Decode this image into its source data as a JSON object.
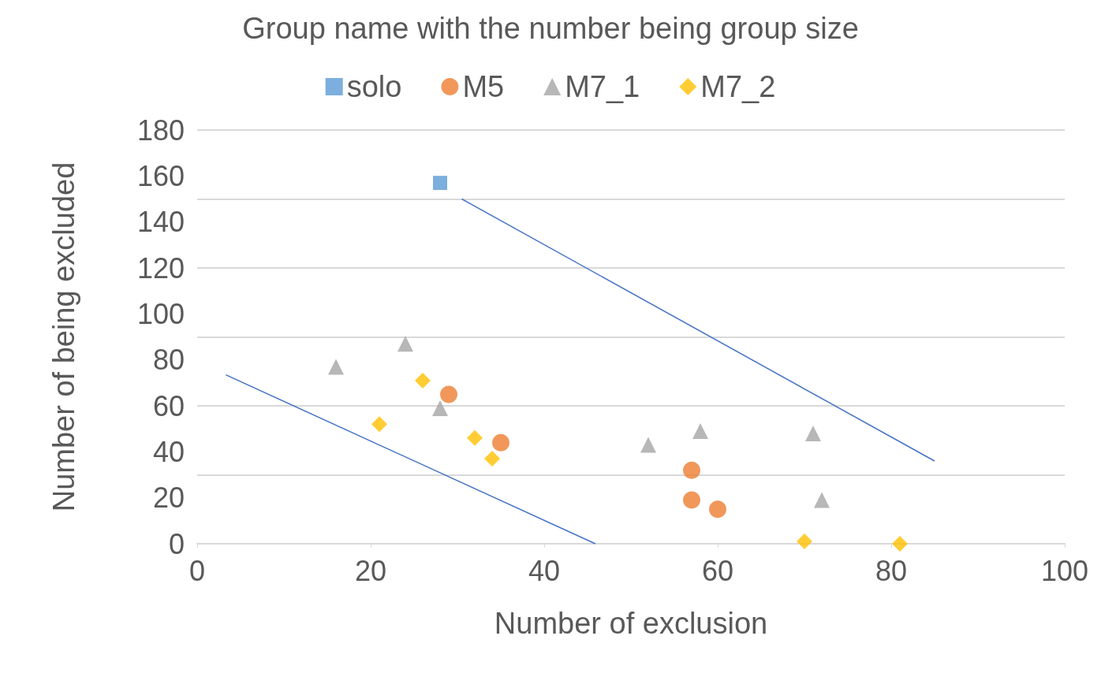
{
  "chart_data": {
    "type": "scatter",
    "title": "Group name with the number being group size",
    "xlabel": "Number of exclusion",
    "ylabel": "Number of being excluded",
    "xlim": [
      0,
      100
    ],
    "xticks": [
      0,
      20,
      40,
      60,
      80,
      100
    ],
    "ylim": [
      0,
      180
    ],
    "yticks": [
      0,
      20,
      40,
      60,
      80,
      100,
      120,
      140,
      160,
      180
    ],
    "grid": "y",
    "legend": "top",
    "series": [
      {
        "name": "solo",
        "color": "#5b9bd5",
        "marker": "square",
        "x": [
          28
        ],
        "values": [
          157
        ]
      },
      {
        "name": "M5",
        "color": "#ed7d31",
        "marker": "circle",
        "x": [
          29,
          35,
          57,
          57,
          60
        ],
        "values": [
          65,
          44,
          32,
          19,
          15
        ]
      },
      {
        "name": "M7_1",
        "color": "#a5a5a5",
        "marker": "triangle",
        "x": [
          16,
          24,
          28,
          52,
          58,
          71,
          72
        ],
        "values": [
          77,
          87,
          59,
          43,
          49,
          48,
          19
        ]
      },
      {
        "name": "M7_2",
        "color": "#ffc000",
        "marker": "diamond",
        "x": [
          21,
          26,
          32,
          34,
          70,
          81
        ],
        "values": [
          52,
          71,
          46,
          37,
          1,
          0
        ]
      },
      {
        "type": "line",
        "color": "#4472c4",
        "marker": "none",
        "line_style": "solid",
        "x": [
          3.3,
          45.9
        ],
        "values": [
          73.5,
          0
        ]
      },
      {
        "type": "line",
        "color": "#4472c4",
        "marker": "none",
        "line_style": "solid",
        "x": [
          30.5,
          85
        ],
        "values": [
          150,
          36
        ]
      }
    ]
  }
}
